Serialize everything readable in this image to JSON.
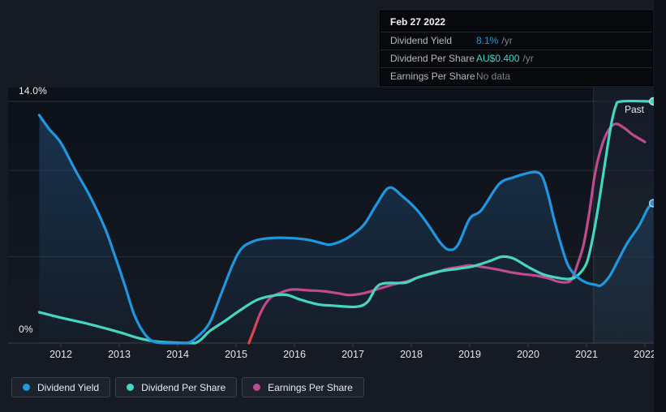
{
  "colors": {
    "background": "#151a23",
    "grid": "#262d36",
    "axis_line": "#3a414b",
    "text_primary": "#eef1f4",
    "text_muted": "#7d838a",
    "yield_blue": "#2196e0",
    "dps_teal": "#45d6c2",
    "eps_pink": "#bf4a8d",
    "eps_red_start": "#e8433c",
    "area_fill_blue": "#2e7cc3",
    "tooltip_bg": "#07090c",
    "legend_chip_bg": "#1c232d",
    "past_band": "#7fa8d9"
  },
  "tooltip": {
    "date": "Feb 27 2022",
    "rows": [
      {
        "label": "Dividend Yield",
        "value": "8.1%",
        "suffix": "/yr",
        "color_key": "yield_blue"
      },
      {
        "label": "Dividend Per Share",
        "value": "AU$0.400",
        "suffix": "/yr",
        "color_key": "dps_teal"
      },
      {
        "label": "Earnings Per Share",
        "value": "No data",
        "suffix": "",
        "color_key": "text_muted"
      }
    ]
  },
  "axis": {
    "y_top_label": "14.0%",
    "y_zero_label": "0%",
    "past_label": "Past"
  },
  "legend": {
    "items": [
      {
        "label": "Dividend Yield",
        "color_key": "yield_blue"
      },
      {
        "label": "Dividend Per Share",
        "color_key": "dps_teal"
      },
      {
        "label": "Earnings Per Share",
        "color_key": "eps_pink"
      }
    ]
  },
  "chart_data": {
    "type": "line",
    "x_ticks": [
      "2012",
      "2013",
      "2014",
      "2015",
      "2016",
      "2017",
      "2018",
      "2019",
      "2020",
      "2021",
      "2022"
    ],
    "x_range": [
      2011.6,
      2022.15
    ],
    "y_axis_percent": {
      "min": 0,
      "max": 14,
      "gridlines": [
        0,
        5,
        10,
        14
      ]
    },
    "dps_axis_scale_pct_per_aud": 35,
    "past_band_start_year": 2021.12,
    "grid": true,
    "legend_position": "bottom-left",
    "series": [
      {
        "name": "Dividend Yield",
        "unit": "percent",
        "color_key": "yield_blue",
        "area_fill": true,
        "end_dot": true,
        "points": [
          [
            2011.63,
            13.2
          ],
          [
            2011.8,
            12.4
          ],
          [
            2012,
            11.6
          ],
          [
            2012.25,
            10.0
          ],
          [
            2012.5,
            8.5
          ],
          [
            2012.75,
            6.7
          ],
          [
            2012.9,
            5.3
          ],
          [
            2013.1,
            3.3
          ],
          [
            2013.25,
            1.7
          ],
          [
            2013.4,
            0.7
          ],
          [
            2013.55,
            0.15
          ],
          [
            2013.75,
            0
          ],
          [
            2014.15,
            0
          ],
          [
            2014.35,
            0.4
          ],
          [
            2014.55,
            1.2
          ],
          [
            2014.75,
            2.9
          ],
          [
            2014.95,
            4.6
          ],
          [
            2015.1,
            5.5
          ],
          [
            2015.3,
            5.9
          ],
          [
            2015.5,
            6.05
          ],
          [
            2015.8,
            6.1
          ],
          [
            2016.2,
            6.0
          ],
          [
            2016.45,
            5.8
          ],
          [
            2016.6,
            5.7
          ],
          [
            2016.8,
            5.9
          ],
          [
            2017,
            6.3
          ],
          [
            2017.2,
            6.9
          ],
          [
            2017.4,
            8.0
          ],
          [
            2017.62,
            9.0
          ],
          [
            2017.85,
            8.5
          ],
          [
            2018.1,
            7.7
          ],
          [
            2018.3,
            6.8
          ],
          [
            2018.5,
            5.8
          ],
          [
            2018.65,
            5.4
          ],
          [
            2018.8,
            5.7
          ],
          [
            2019,
            7.2
          ],
          [
            2019.2,
            7.7
          ],
          [
            2019.5,
            9.2
          ],
          [
            2019.75,
            9.6
          ],
          [
            2020,
            9.85
          ],
          [
            2020.15,
            9.9
          ],
          [
            2020.25,
            9.6
          ],
          [
            2020.35,
            8.5
          ],
          [
            2020.45,
            7.1
          ],
          [
            2020.6,
            5.3
          ],
          [
            2020.7,
            4.4
          ],
          [
            2020.85,
            3.8
          ],
          [
            2021,
            3.5
          ],
          [
            2021.15,
            3.38
          ],
          [
            2021.25,
            3.35
          ],
          [
            2021.4,
            3.9
          ],
          [
            2021.55,
            4.85
          ],
          [
            2021.7,
            5.8
          ],
          [
            2021.9,
            6.8
          ],
          [
            2022.05,
            7.8
          ],
          [
            2022.14,
            8.1
          ]
        ]
      },
      {
        "name": "Dividend Per Share",
        "unit": "aud",
        "color_key": "dps_teal",
        "end_dot": true,
        "points": [
          [
            2011.63,
            0.051
          ],
          [
            2012,
            0.042
          ],
          [
            2012.5,
            0.031
          ],
          [
            2013,
            0.018
          ],
          [
            2013.3,
            0.009
          ],
          [
            2013.6,
            0.003
          ],
          [
            2013.9,
            0.001
          ],
          [
            2014.3,
            0
          ],
          [
            2014.55,
            0.02
          ],
          [
            2014.8,
            0.036
          ],
          [
            2015.05,
            0.053
          ],
          [
            2015.35,
            0.071
          ],
          [
            2015.6,
            0.078
          ],
          [
            2015.85,
            0.08
          ],
          [
            2016.1,
            0.072
          ],
          [
            2016.4,
            0.064
          ],
          [
            2016.65,
            0.062
          ],
          [
            2017.05,
            0.06
          ],
          [
            2017.25,
            0.068
          ],
          [
            2017.4,
            0.092
          ],
          [
            2017.55,
            0.099
          ],
          [
            2017.9,
            0.1
          ],
          [
            2018.1,
            0.108
          ],
          [
            2018.45,
            0.118
          ],
          [
            2018.8,
            0.123
          ],
          [
            2019.05,
            0.127
          ],
          [
            2019.35,
            0.136
          ],
          [
            2019.55,
            0.143
          ],
          [
            2019.75,
            0.14
          ],
          [
            2020,
            0.126
          ],
          [
            2020.25,
            0.114
          ],
          [
            2020.5,
            0.108
          ],
          [
            2020.7,
            0.106
          ],
          [
            2020.85,
            0.112
          ],
          [
            2021,
            0.132
          ],
          [
            2021.1,
            0.171
          ],
          [
            2021.2,
            0.225
          ],
          [
            2021.32,
            0.3
          ],
          [
            2021.42,
            0.36
          ],
          [
            2021.5,
            0.392
          ],
          [
            2021.6,
            0.4
          ],
          [
            2022.14,
            0.4
          ]
        ]
      },
      {
        "name": "Earnings Per Share",
        "unit": "percent_equivalent_hidden_axis",
        "color_key": "eps_pink",
        "gradient_start_color_key": "eps_red_start",
        "end_dot": false,
        "points": [
          [
            2015.22,
            0
          ],
          [
            2015.3,
            0.7
          ],
          [
            2015.4,
            1.6
          ],
          [
            2015.5,
            2.25
          ],
          [
            2015.6,
            2.65
          ],
          [
            2015.75,
            2.9
          ],
          [
            2015.95,
            3.1
          ],
          [
            2016.25,
            3.05
          ],
          [
            2016.5,
            3.0
          ],
          [
            2016.75,
            2.88
          ],
          [
            2016.95,
            2.78
          ],
          [
            2017.2,
            2.9
          ],
          [
            2017.45,
            3.15
          ],
          [
            2017.7,
            3.4
          ],
          [
            2017.95,
            3.6
          ],
          [
            2018.15,
            3.85
          ],
          [
            2018.4,
            4.05
          ],
          [
            2018.6,
            4.28
          ],
          [
            2018.85,
            4.42
          ],
          [
            2019,
            4.5
          ],
          [
            2019.2,
            4.42
          ],
          [
            2019.45,
            4.28
          ],
          [
            2019.7,
            4.1
          ],
          [
            2019.9,
            4.0
          ],
          [
            2020.15,
            3.9
          ],
          [
            2020.35,
            3.75
          ],
          [
            2020.5,
            3.57
          ],
          [
            2020.65,
            3.52
          ],
          [
            2020.75,
            3.7
          ],
          [
            2020.85,
            4.6
          ],
          [
            2020.95,
            5.7
          ],
          [
            2021.05,
            7.6
          ],
          [
            2021.15,
            9.9
          ],
          [
            2021.27,
            11.5
          ],
          [
            2021.38,
            12.35
          ],
          [
            2021.5,
            12.7
          ],
          [
            2021.65,
            12.45
          ],
          [
            2021.8,
            12.05
          ],
          [
            2022,
            11.65
          ]
        ]
      }
    ]
  }
}
